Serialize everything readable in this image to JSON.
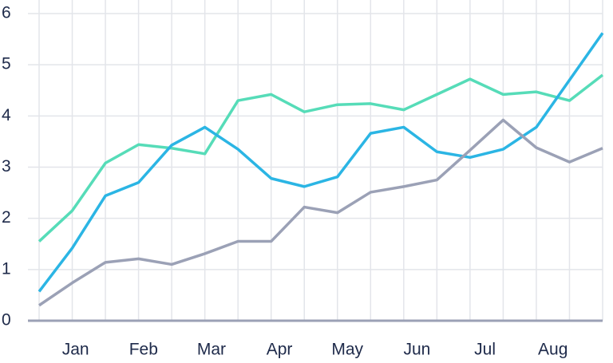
{
  "chart_data": {
    "type": "line",
    "x": [
      0,
      1,
      2,
      3,
      4,
      5,
      6,
      7,
      8,
      9,
      10,
      11,
      12,
      13,
      14,
      15,
      16,
      17
    ],
    "xlim": [
      0,
      17
    ],
    "xticks": [
      {
        "value": 1.1,
        "label": "Jan"
      },
      {
        "value": 3.15,
        "label": "Feb"
      },
      {
        "value": 5.2,
        "label": "Mar"
      },
      {
        "value": 7.25,
        "label": "Apr"
      },
      {
        "value": 9.3,
        "label": "May"
      },
      {
        "value": 11.4,
        "label": "Jun"
      },
      {
        "value": 13.45,
        "label": "Jul"
      },
      {
        "value": 15.5,
        "label": "Aug"
      }
    ],
    "ylim": [
      0,
      6
    ],
    "yticks": [
      0,
      1,
      2,
      3,
      4,
      5,
      6
    ],
    "grid": true,
    "series": [
      {
        "color": "#56dcb8",
        "values": [
          1.55,
          2.15,
          3.08,
          3.44,
          3.37,
          3.26,
          4.3,
          4.42,
          4.08,
          4.22,
          4.24,
          4.12,
          4.42,
          4.72,
          4.42,
          4.47,
          4.3,
          4.8
        ]
      },
      {
        "color": "#2bb5e4",
        "values": [
          0.57,
          1.42,
          2.44,
          2.7,
          3.43,
          3.78,
          3.35,
          2.78,
          2.62,
          2.81,
          3.66,
          3.78,
          3.3,
          3.19,
          3.35,
          3.78,
          4.7,
          5.62
        ]
      },
      {
        "color": "#9ba1b6",
        "values": [
          0.3,
          0.74,
          1.14,
          1.21,
          1.1,
          1.31,
          1.55,
          1.55,
          2.22,
          2.11,
          2.51,
          2.62,
          2.75,
          3.33,
          3.92,
          3.38,
          3.1,
          3.37
        ]
      }
    ]
  }
}
